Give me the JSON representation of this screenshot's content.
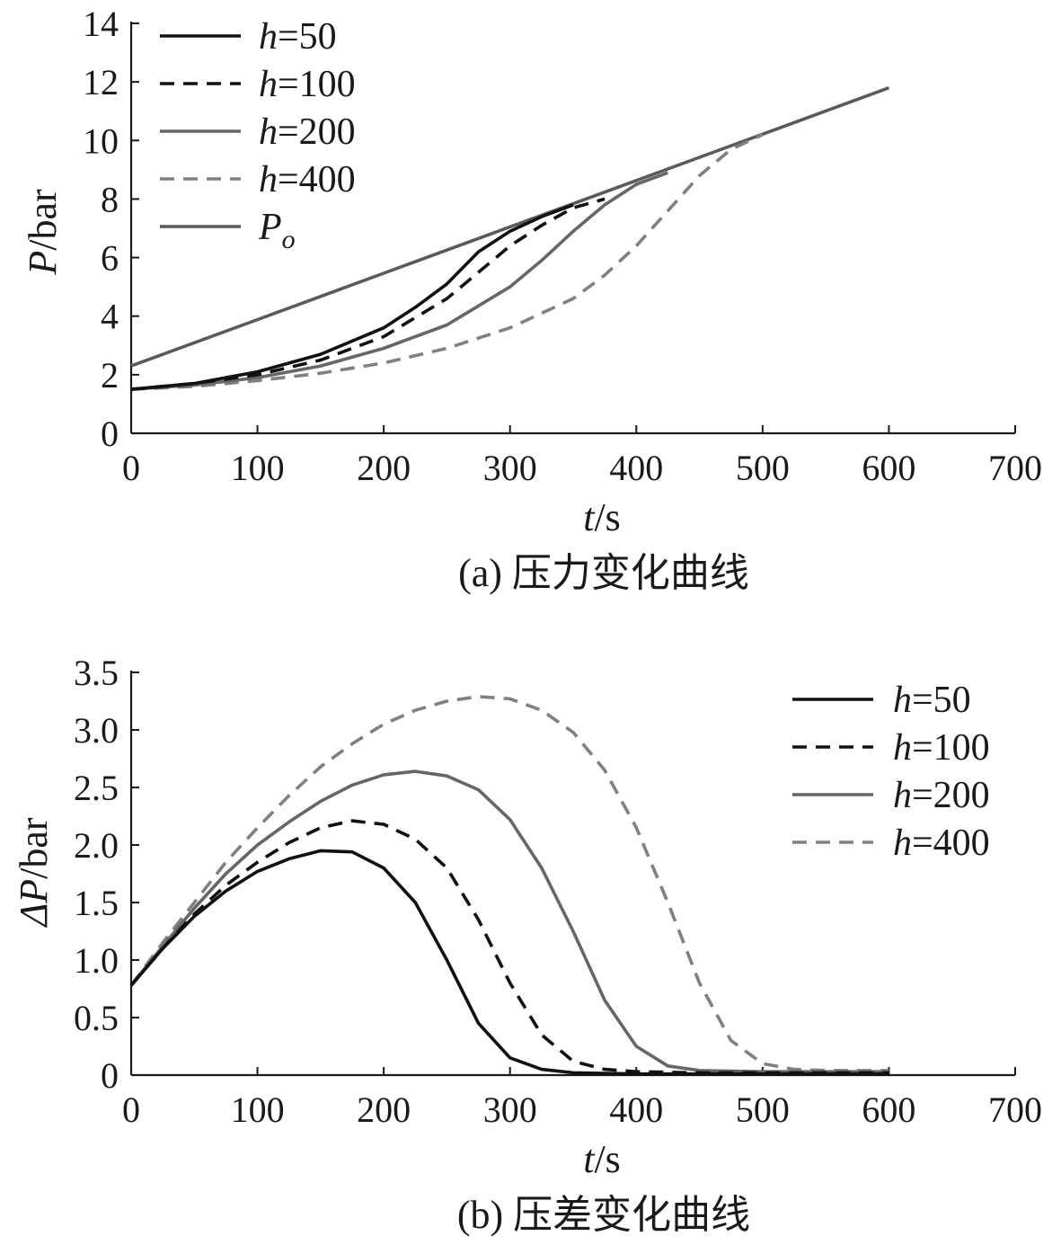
{
  "chart_data": [
    {
      "type": "line",
      "caption": "(a) 压力变化曲线",
      "xlabel": {
        "var": "t",
        "unit": "/s"
      },
      "ylabel": {
        "var": "P",
        "unit": "/bar"
      },
      "xlim": [
        0,
        700
      ],
      "ylim": [
        0,
        14
      ],
      "xticks": [
        0,
        100,
        200,
        300,
        400,
        500,
        600,
        700
      ],
      "yticks": [
        0,
        2,
        4,
        6,
        8,
        10,
        12,
        14
      ],
      "ytick_labels": [
        "0",
        "2",
        "4",
        "6",
        "8",
        "10",
        "12",
        "14"
      ],
      "legend_position": "top-left",
      "series": [
        {
          "name": "h=50",
          "var": "h",
          "eq": "=50",
          "color": "#111111",
          "dash": "solid",
          "x": [
            0,
            50,
            100,
            150,
            200,
            225,
            250,
            275,
            300,
            325,
            350
          ],
          "y": [
            1.5,
            1.7,
            2.1,
            2.7,
            3.6,
            4.3,
            5.1,
            6.2,
            6.9,
            7.4,
            7.8
          ]
        },
        {
          "name": "h=100",
          "var": "h",
          "eq": "=100",
          "color": "#111111",
          "dash": "dashed",
          "x": [
            0,
            50,
            100,
            150,
            200,
            250,
            275,
            300,
            325,
            350,
            375
          ],
          "y": [
            1.5,
            1.7,
            2.0,
            2.5,
            3.3,
            4.6,
            5.5,
            6.4,
            7.1,
            7.7,
            8.0
          ]
        },
        {
          "name": "h=200",
          "var": "h",
          "eq": "=200",
          "color": "#666666",
          "dash": "solid",
          "x": [
            0,
            50,
            100,
            150,
            200,
            250,
            300,
            325,
            350,
            375,
            400,
            425
          ],
          "y": [
            1.5,
            1.65,
            1.9,
            2.3,
            2.9,
            3.7,
            5.0,
            5.9,
            6.9,
            7.8,
            8.5,
            8.9
          ]
        },
        {
          "name": "h=400",
          "var": "h",
          "eq": "=400",
          "color": "#808080",
          "dash": "dashed",
          "x": [
            0,
            50,
            100,
            150,
            200,
            250,
            300,
            350,
            375,
            400,
            425,
            450,
            475,
            500
          ],
          "y": [
            1.5,
            1.6,
            1.8,
            2.05,
            2.4,
            2.9,
            3.6,
            4.6,
            5.4,
            6.4,
            7.6,
            8.8,
            9.7,
            10.2
          ]
        },
        {
          "name": "Po",
          "var": "P",
          "sub": "o",
          "color": "#5a5a5a",
          "dash": "solid",
          "x": [
            0,
            600
          ],
          "y": [
            2.3,
            11.8
          ]
        }
      ]
    },
    {
      "type": "line",
      "caption": "(b) 压差变化曲线",
      "xlabel": {
        "var": "t",
        "unit": "/s"
      },
      "ylabel": {
        "var": "ΔP",
        "unit": "/bar"
      },
      "xlim": [
        0,
        700
      ],
      "ylim": [
        0,
        3.5
      ],
      "xticks": [
        0,
        100,
        200,
        300,
        400,
        500,
        600,
        700
      ],
      "yticks": [
        0,
        0.5,
        1.0,
        1.5,
        2.0,
        2.5,
        3.0,
        3.5
      ],
      "ytick_labels": [
        "0",
        "0.5",
        "1.0",
        "1.5",
        "2.0",
        "2.5",
        "3.0",
        "3.5"
      ],
      "legend_position": "top-right",
      "series": [
        {
          "name": "h=50",
          "var": "h",
          "eq": "=50",
          "color": "#111111",
          "dash": "solid",
          "x": [
            0,
            25,
            50,
            75,
            100,
            125,
            150,
            175,
            200,
            225,
            250,
            275,
            300,
            325,
            350,
            400,
            450,
            500,
            550,
            600
          ],
          "y": [
            0.78,
            1.1,
            1.38,
            1.6,
            1.77,
            1.88,
            1.95,
            1.94,
            1.8,
            1.5,
            1.0,
            0.45,
            0.15,
            0.05,
            0.02,
            0.01,
            0.01,
            0.01,
            0.01,
            0.01
          ]
        },
        {
          "name": "h=100",
          "var": "h",
          "eq": "=100",
          "color": "#111111",
          "dash": "dashed",
          "x": [
            0,
            25,
            50,
            75,
            100,
            125,
            150,
            175,
            200,
            225,
            250,
            275,
            300,
            325,
            350,
            375,
            400,
            450,
            500,
            550,
            600
          ],
          "y": [
            0.78,
            1.1,
            1.4,
            1.65,
            1.85,
            2.02,
            2.15,
            2.21,
            2.18,
            2.05,
            1.8,
            1.35,
            0.8,
            0.35,
            0.12,
            0.05,
            0.03,
            0.02,
            0.02,
            0.02,
            0.02
          ]
        },
        {
          "name": "h=200",
          "var": "h",
          "eq": "=200",
          "color": "#666666",
          "dash": "solid",
          "x": [
            0,
            25,
            50,
            75,
            100,
            125,
            150,
            175,
            200,
            225,
            250,
            275,
            300,
            325,
            350,
            375,
            400,
            425,
            450,
            500,
            550,
            600
          ],
          "y": [
            0.78,
            1.12,
            1.45,
            1.75,
            2.0,
            2.2,
            2.38,
            2.52,
            2.61,
            2.64,
            2.6,
            2.48,
            2.22,
            1.8,
            1.25,
            0.65,
            0.25,
            0.08,
            0.04,
            0.03,
            0.03,
            0.03
          ]
        },
        {
          "name": "h=400",
          "var": "h",
          "eq": "=400",
          "color": "#808080",
          "dash": "dashed",
          "x": [
            0,
            25,
            50,
            75,
            100,
            125,
            150,
            175,
            200,
            225,
            250,
            275,
            300,
            325,
            350,
            375,
            400,
            425,
            450,
            475,
            500,
            525,
            550,
            600
          ],
          "y": [
            0.78,
            1.15,
            1.5,
            1.85,
            2.15,
            2.43,
            2.68,
            2.88,
            3.05,
            3.17,
            3.25,
            3.29,
            3.27,
            3.17,
            2.98,
            2.65,
            2.15,
            1.5,
            0.8,
            0.3,
            0.1,
            0.05,
            0.04,
            0.04
          ]
        }
      ]
    }
  ]
}
